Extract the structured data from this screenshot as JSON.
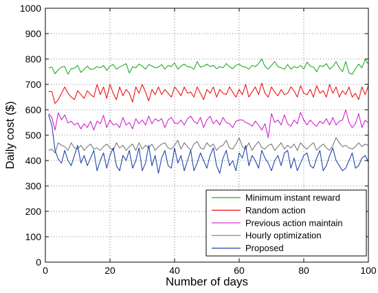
{
  "chart_data": {
    "type": "line",
    "title": "",
    "xlabel": "Number of days",
    "ylabel": "Daily cost ($)",
    "xlim": [
      0,
      100
    ],
    "ylim": [
      0,
      1000
    ],
    "xticks": [
      0,
      20,
      40,
      60,
      80,
      100
    ],
    "yticks": [
      0,
      100,
      200,
      300,
      400,
      500,
      600,
      700,
      800,
      900,
      1000
    ],
    "grid": true,
    "legend_position": "bottom-right",
    "series": [
      {
        "name": "Minimum instant reward",
        "color": "#22aa22",
        "x": [
          1,
          2,
          3,
          4,
          5,
          6,
          7,
          8,
          9,
          10,
          11,
          12,
          13,
          14,
          15,
          16,
          17,
          18,
          19,
          20,
          21,
          22,
          23,
          24,
          25,
          26,
          27,
          28,
          29,
          30,
          31,
          32,
          33,
          34,
          35,
          36,
          37,
          38,
          39,
          40,
          41,
          42,
          43,
          44,
          45,
          46,
          47,
          48,
          49,
          50,
          51,
          52,
          53,
          54,
          55,
          56,
          57,
          58,
          59,
          60,
          61,
          62,
          63,
          64,
          65,
          66,
          67,
          68,
          69,
          70,
          71,
          72,
          73,
          74,
          75,
          76,
          77,
          78,
          79,
          80,
          81,
          82,
          83,
          84,
          85,
          86,
          87,
          88,
          89,
          90,
          91,
          92,
          93,
          94,
          95,
          96,
          97,
          98,
          99,
          100
        ],
        "y": [
          765,
          768,
          742,
          758,
          768,
          771,
          740,
          762,
          764,
          775,
          747,
          760,
          772,
          758,
          762,
          770,
          765,
          775,
          755,
          772,
          778,
          760,
          768,
          775,
          782,
          745,
          770,
          765,
          780,
          772,
          760,
          778,
          773,
          765,
          768,
          778,
          760,
          775,
          770,
          785,
          760,
          772,
          780,
          770,
          768,
          760,
          790,
          768,
          772,
          780,
          770,
          775,
          762,
          770,
          765,
          782,
          770,
          762,
          775,
          780,
          770,
          768,
          760,
          775,
          770,
          782,
          800,
          770,
          760,
          775,
          790,
          770,
          765,
          760,
          778,
          760,
          770,
          765,
          775,
          760,
          788,
          772,
          768,
          750,
          775,
          770,
          782,
          760,
          770,
          790,
          765,
          750,
          790,
          745,
          740,
          762,
          780,
          765,
          798,
          780
        ]
      },
      {
        "name": "Random action",
        "color": "#ee1111",
        "x": [
          1,
          2,
          3,
          4,
          5,
          6,
          7,
          8,
          9,
          10,
          11,
          12,
          13,
          14,
          15,
          16,
          17,
          18,
          19,
          20,
          21,
          22,
          23,
          24,
          25,
          26,
          27,
          28,
          29,
          30,
          31,
          32,
          33,
          34,
          35,
          36,
          37,
          38,
          39,
          40,
          41,
          42,
          43,
          44,
          45,
          46,
          47,
          48,
          49,
          50,
          51,
          52,
          53,
          54,
          55,
          56,
          57,
          58,
          59,
          60,
          61,
          62,
          63,
          64,
          65,
          66,
          67,
          68,
          69,
          70,
          71,
          72,
          73,
          74,
          75,
          76,
          77,
          78,
          79,
          80,
          81,
          82,
          83,
          84,
          85,
          86,
          87,
          88,
          89,
          90,
          91,
          92,
          93,
          94,
          95,
          96,
          97,
          98,
          99,
          100
        ],
        "y": [
          672,
          672,
          625,
          640,
          665,
          690,
          665,
          650,
          640,
          675,
          660,
          645,
          675,
          660,
          650,
          700,
          660,
          690,
          645,
          700,
          665,
          640,
          690,
          655,
          680,
          665,
          630,
          690,
          665,
          700,
          670,
          635,
          680,
          660,
          690,
          660,
          680,
          665,
          650,
          690,
          675,
          655,
          690,
          665,
          670,
          650,
          690,
          665,
          640,
          680,
          665,
          690,
          650,
          680,
          665,
          660,
          690,
          670,
          650,
          680,
          660,
          700,
          650,
          670,
          690,
          660,
          705,
          665,
          650,
          690,
          670,
          655,
          680,
          660,
          665,
          690,
          675,
          650,
          695,
          665,
          660,
          680,
          650,
          695,
          665,
          675,
          650,
          700,
          665,
          690,
          650,
          675,
          660,
          690,
          650,
          665,
          640,
          690,
          660,
          695
        ]
      },
      {
        "name": "Previous action maintain",
        "color": "#cc22cc",
        "x": [
          1,
          2,
          3,
          4,
          5,
          6,
          7,
          8,
          9,
          10,
          11,
          12,
          13,
          14,
          15,
          16,
          17,
          18,
          19,
          20,
          21,
          22,
          23,
          24,
          25,
          26,
          27,
          28,
          29,
          30,
          31,
          32,
          33,
          34,
          35,
          36,
          37,
          38,
          39,
          40,
          41,
          42,
          43,
          44,
          45,
          46,
          47,
          48,
          49,
          50,
          51,
          52,
          53,
          54,
          55,
          56,
          57,
          58,
          59,
          60,
          61,
          62,
          63,
          64,
          65,
          66,
          67,
          68,
          69,
          70,
          71,
          72,
          73,
          74,
          75,
          76,
          77,
          78,
          79,
          80,
          81,
          82,
          83,
          84,
          85,
          86,
          87,
          88,
          89,
          90,
          91,
          92,
          93,
          94,
          95,
          96,
          97,
          98,
          99,
          100
        ],
        "y": [
          585,
          570,
          520,
          588,
          560,
          580,
          548,
          555,
          540,
          548,
          525,
          545,
          530,
          555,
          520,
          555,
          545,
          578,
          530,
          560,
          540,
          545,
          530,
          570,
          540,
          550,
          525,
          565,
          545,
          560,
          540,
          575,
          545,
          565,
          555,
          565,
          530,
          560,
          570,
          548,
          545,
          560,
          540,
          565,
          575,
          555,
          545,
          570,
          530,
          560,
          575,
          545,
          560,
          540,
          570,
          550,
          545,
          530,
          555,
          560,
          560,
          550,
          545,
          535,
          555,
          540,
          520,
          545,
          490,
          585,
          550,
          560,
          540,
          580,
          545,
          535,
          560,
          545,
          590,
          560,
          540,
          560,
          545,
          535,
          555,
          545,
          565,
          540,
          570,
          540,
          555,
          560,
          600,
          550,
          530,
          545,
          585,
          530,
          558,
          550
        ]
      },
      {
        "name": "Hourly optimization",
        "color": "#777777",
        "x": [
          1,
          2,
          3,
          4,
          5,
          6,
          7,
          8,
          9,
          10,
          11,
          12,
          13,
          14,
          15,
          16,
          17,
          18,
          19,
          20,
          21,
          22,
          23,
          24,
          25,
          26,
          27,
          28,
          29,
          30,
          31,
          32,
          33,
          34,
          35,
          36,
          37,
          38,
          39,
          40,
          41,
          42,
          43,
          44,
          45,
          46,
          47,
          48,
          49,
          50,
          51,
          52,
          53,
          54,
          55,
          56,
          57,
          58,
          59,
          60,
          61,
          62,
          63,
          64,
          65,
          66,
          67,
          68,
          69,
          70,
          71,
          72,
          73,
          74,
          75,
          76,
          77,
          78,
          79,
          80,
          81,
          82,
          83,
          84,
          85,
          86,
          87,
          88,
          89,
          90,
          91,
          92,
          93,
          94,
          95,
          96,
          97,
          98,
          99,
          100
        ],
        "y": [
          440,
          445,
          430,
          470,
          460,
          455,
          440,
          470,
          450,
          445,
          460,
          440,
          455,
          465,
          445,
          450,
          440,
          455,
          465,
          450,
          440,
          470,
          450,
          460,
          440,
          455,
          465,
          440,
          470,
          445,
          460,
          450,
          465,
          440,
          455,
          465,
          470,
          450,
          445,
          460,
          480,
          445,
          470,
          455,
          440,
          465,
          475,
          450,
          445,
          470,
          455,
          465,
          440,
          455,
          460,
          480,
          450,
          445,
          465,
          490,
          455,
          445,
          470,
          440,
          460,
          475,
          450,
          445,
          460,
          465,
          440,
          455,
          470,
          445,
          460,
          450,
          465,
          440,
          470,
          455,
          445,
          460,
          470,
          440,
          455,
          465,
          450,
          440,
          460,
          490,
          470,
          455,
          460,
          450,
          445,
          455,
          470,
          455,
          465,
          460
        ]
      },
      {
        "name": "Proposed",
        "color": "#1f44aa",
        "x": [
          1,
          2,
          3,
          4,
          5,
          6,
          7,
          8,
          9,
          10,
          11,
          12,
          13,
          14,
          15,
          16,
          17,
          18,
          19,
          20,
          21,
          22,
          23,
          24,
          25,
          26,
          27,
          28,
          29,
          30,
          31,
          32,
          33,
          34,
          35,
          36,
          37,
          38,
          39,
          40,
          41,
          42,
          43,
          44,
          45,
          46,
          47,
          48,
          49,
          50,
          51,
          52,
          53,
          54,
          55,
          56,
          57,
          58,
          59,
          60,
          61,
          62,
          63,
          64,
          65,
          66,
          67,
          68,
          69,
          70,
          71,
          72,
          73,
          74,
          75,
          76,
          77,
          78,
          79,
          80,
          81,
          82,
          83,
          84,
          85,
          86,
          87,
          88,
          89,
          90,
          91,
          92,
          93,
          94,
          95,
          96,
          97,
          98,
          99,
          100
        ],
        "y": [
          580,
          540,
          440,
          405,
          390,
          440,
          400,
          380,
          420,
          460,
          390,
          420,
          380,
          410,
          440,
          360,
          400,
          430,
          370,
          420,
          450,
          380,
          360,
          420,
          400,
          440,
          370,
          400,
          450,
          360,
          390,
          460,
          380,
          420,
          350,
          410,
          440,
          380,
          370,
          450,
          390,
          420,
          360,
          400,
          440,
          360,
          390,
          430,
          400,
          370,
          420,
          450,
          380,
          350,
          410,
          440,
          380,
          400,
          360,
          430,
          410,
          460,
          380,
          420,
          400,
          370,
          440,
          410,
          390,
          360,
          400,
          420,
          380,
          430,
          440,
          370,
          410,
          360,
          390,
          420,
          430,
          380,
          370,
          410,
          440,
          360,
          380,
          420,
          450,
          400,
          380,
          360,
          370,
          400,
          430,
          370,
          380,
          410,
          420,
          395
        ]
      }
    ]
  }
}
